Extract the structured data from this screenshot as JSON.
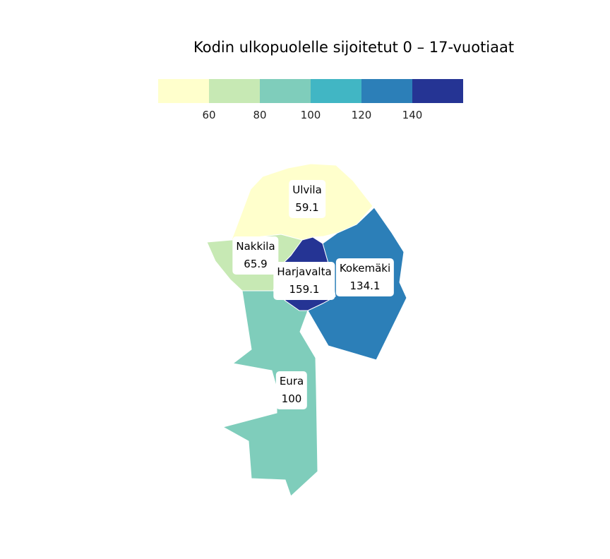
{
  "title": "Kodin ulkopuolelle sijoitetut 0 – 17-vuotiaat",
  "legend": {
    "colors": [
      "#ffffcc",
      "#c7e9b4",
      "#7fcdbb",
      "#41b6c4",
      "#2c7fb8",
      "#253494"
    ],
    "ticks": [
      "60",
      "80",
      "100",
      "120",
      "140"
    ]
  },
  "regions": [
    {
      "name": "Ulvila",
      "value": "59.1",
      "color": "#ffffcc"
    },
    {
      "name": "Nakkila",
      "value": "65.9",
      "color": "#c7e9b4"
    },
    {
      "name": "Eura",
      "value": "100",
      "color": "#7fcdbb"
    },
    {
      "name": "Kokemäki",
      "value": "134.1",
      "color": "#2c7fb8"
    },
    {
      "name": "Harjavalta",
      "value": "159.1",
      "color": "#253494"
    }
  ]
}
